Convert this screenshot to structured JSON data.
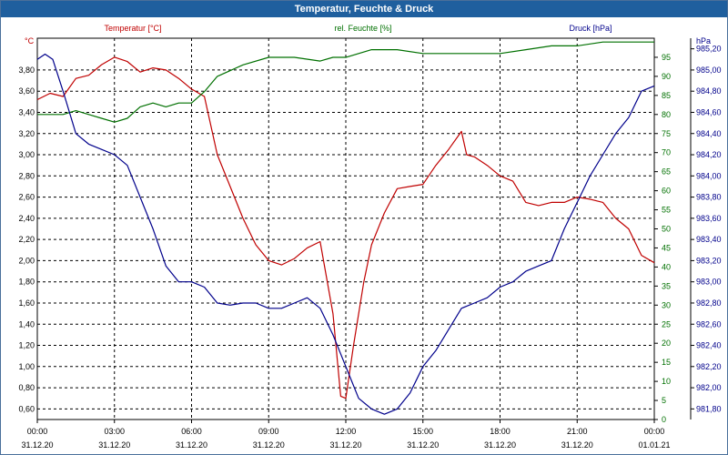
{
  "window": {
    "title": "Temperatur, Feuchte & Druck"
  },
  "chart_data": {
    "type": "line",
    "title": "Temperatur, Feuchte & Druck",
    "x_ticks": [
      {
        "time": "00:00",
        "date": "31.12.20"
      },
      {
        "time": "03:00",
        "date": "31.12.20"
      },
      {
        "time": "06:00",
        "date": "31.12.20"
      },
      {
        "time": "09:00",
        "date": "31.12.20"
      },
      {
        "time": "12:00",
        "date": "31.12.20"
      },
      {
        "time": "15:00",
        "date": "31.12.20"
      },
      {
        "time": "18:00",
        "date": "31.12.20"
      },
      {
        "time": "21:00",
        "date": "31.12.20"
      },
      {
        "time": "00:00",
        "date": "01.01.21"
      }
    ],
    "axes": {
      "temperature": {
        "label": "Temperatur [°C]",
        "unit": "°C",
        "color": "#c00000",
        "ylim": [
          0.5,
          4.1
        ],
        "ticks": [
          "0,60",
          "0,80",
          "1,00",
          "1,20",
          "1,40",
          "1,60",
          "1,80",
          "2,00",
          "2,20",
          "2,40",
          "2,60",
          "2,80",
          "3,00",
          "3,20",
          "3,40",
          "3,60",
          "3,80"
        ],
        "tick_values": [
          0.6,
          0.8,
          1.0,
          1.2,
          1.4,
          1.6,
          1.8,
          2.0,
          2.2,
          2.4,
          2.6,
          2.8,
          3.0,
          3.2,
          3.4,
          3.6,
          3.8
        ]
      },
      "humidity": {
        "label": "rel. Feuchte [%]",
        "unit": "%",
        "color": "#007000",
        "ylim": [
          0,
          100
        ],
        "ticks": [
          "0",
          "5",
          "10",
          "15",
          "20",
          "25",
          "30",
          "35",
          "40",
          "45",
          "50",
          "55",
          "60",
          "65",
          "70",
          "75",
          "80",
          "85",
          "90",
          "95"
        ],
        "tick_values": [
          0,
          5,
          10,
          15,
          20,
          25,
          30,
          35,
          40,
          45,
          50,
          55,
          60,
          65,
          70,
          75,
          80,
          85,
          90,
          95
        ]
      },
      "pressure": {
        "label": "Druck [hPa]",
        "unit": "hPa",
        "color": "#00008b",
        "ylim": [
          981.7,
          985.3
        ],
        "ticks": [
          "981,80",
          "982,00",
          "982,20",
          "982,40",
          "982,60",
          "982,80",
          "983,00",
          "983,20",
          "983,40",
          "983,60",
          "983,80",
          "984,00",
          "984,20",
          "984,40",
          "984,60",
          "984,80",
          "985,00",
          "985,20"
        ],
        "tick_values": [
          981.8,
          982.0,
          982.2,
          982.4,
          982.6,
          982.8,
          983.0,
          983.2,
          983.4,
          983.6,
          983.8,
          984.0,
          984.2,
          984.4,
          984.6,
          984.8,
          985.0,
          985.2
        ]
      }
    },
    "series": [
      {
        "name": "Temperatur",
        "axis": "temperature",
        "color": "#c00000",
        "x_hours": [
          0,
          0.5,
          1,
          1.5,
          2,
          2.5,
          3,
          3.5,
          4,
          4.5,
          5,
          5.5,
          6,
          6.5,
          7,
          7.5,
          8,
          8.5,
          9,
          9.5,
          10,
          10.5,
          11,
          11.5,
          11.8,
          12,
          12.3,
          12.7,
          13,
          13.5,
          14,
          14.5,
          15,
          15.5,
          16,
          16.5,
          16.7,
          17,
          17.5,
          18,
          18.5,
          19,
          19.5,
          20,
          20.5,
          21,
          21.5,
          22,
          22.5,
          23,
          23.5,
          24
        ],
        "values": [
          3.52,
          3.58,
          3.55,
          3.72,
          3.75,
          3.85,
          3.92,
          3.88,
          3.78,
          3.82,
          3.8,
          3.72,
          3.62,
          3.55,
          3.0,
          2.7,
          2.4,
          2.15,
          2.0,
          1.96,
          2.02,
          2.12,
          2.18,
          1.5,
          0.72,
          0.7,
          1.2,
          1.8,
          2.15,
          2.45,
          2.68,
          2.7,
          2.72,
          2.9,
          3.05,
          3.22,
          3.0,
          2.98,
          2.9,
          2.8,
          2.75,
          2.55,
          2.52,
          2.55,
          2.55,
          2.6,
          2.58,
          2.55,
          2.4,
          2.3,
          2.05,
          1.98
        ]
      },
      {
        "name": "rel. Feuchte",
        "axis": "humidity",
        "color": "#007000",
        "x_hours": [
          0,
          1,
          1.5,
          2,
          2.5,
          3,
          3.5,
          4,
          4.5,
          5,
          5.5,
          6,
          6.5,
          7,
          8,
          9,
          10,
          11,
          11.5,
          12,
          13,
          14,
          15,
          16,
          17,
          18,
          19,
          20,
          21,
          22,
          23,
          24
        ],
        "values": [
          80,
          80,
          81,
          80,
          79,
          78,
          79,
          82,
          83,
          82,
          83,
          83,
          86,
          90,
          93,
          95,
          95,
          94,
          95,
          95,
          97,
          97,
          96,
          96,
          96,
          96,
          97,
          98,
          98,
          99,
          99,
          99
        ]
      },
      {
        "name": "Druck",
        "axis": "pressure",
        "color": "#00008b",
        "x_hours": [
          0,
          0.3,
          0.6,
          1,
          1.5,
          2,
          2.5,
          3,
          3.5,
          4,
          4.5,
          5,
          5.5,
          6,
          6.5,
          7,
          7.5,
          8,
          8.5,
          9,
          9.5,
          10,
          10.5,
          11,
          11.5,
          12,
          12.5,
          13,
          13.5,
          14,
          14.5,
          15,
          15.5,
          16,
          16.5,
          17,
          17.5,
          18,
          18.5,
          19,
          19.5,
          20,
          20.5,
          21,
          21.5,
          22,
          22.5,
          23,
          23.5,
          24
        ],
        "values": [
          985.1,
          985.15,
          985.1,
          984.8,
          984.4,
          984.3,
          984.25,
          984.2,
          984.1,
          983.8,
          983.5,
          983.15,
          983.0,
          983.0,
          982.95,
          982.8,
          982.78,
          982.8,
          982.8,
          982.75,
          982.75,
          982.8,
          982.85,
          982.75,
          982.5,
          982.2,
          981.9,
          981.8,
          981.75,
          981.8,
          981.95,
          982.2,
          982.35,
          982.55,
          982.75,
          982.8,
          982.85,
          982.95,
          983.0,
          983.1,
          983.15,
          983.2,
          983.5,
          983.75,
          984.0,
          984.2,
          984.4,
          984.55,
          984.8,
          984.85
        ]
      }
    ]
  }
}
